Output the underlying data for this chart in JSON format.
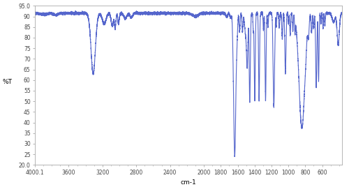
{
  "xlabel": "cm-1",
  "ylabel": "%T",
  "xlim": [
    4000.1,
    365.0
  ],
  "ylim": [
    20.0,
    95.0
  ],
  "ytick_pos": [
    20,
    25,
    30,
    35,
    40,
    45,
    50,
    55,
    60,
    65,
    70,
    75,
    80,
    85,
    90,
    95
  ],
  "ytick_lab": [
    "20.0",
    "25",
    "30",
    "35",
    "40",
    "45",
    "50",
    "55",
    "60",
    "65",
    "70",
    "75",
    "80",
    "85",
    "90",
    "95.0"
  ],
  "xtick_pos": [
    4000,
    3600,
    3200,
    2800,
    2400,
    2000,
    1800,
    1600,
    1400,
    1200,
    1000,
    800,
    600
  ],
  "xtick_lab": [
    "4000.1",
    "3600",
    "3200",
    "2800",
    "2400",
    "2000",
    "1800",
    "1600",
    "1400",
    "1200",
    "1000",
    "800",
    "600"
  ],
  "line_color": "#5566cc",
  "bg_color": "#ffffff",
  "line_width": 0.8
}
